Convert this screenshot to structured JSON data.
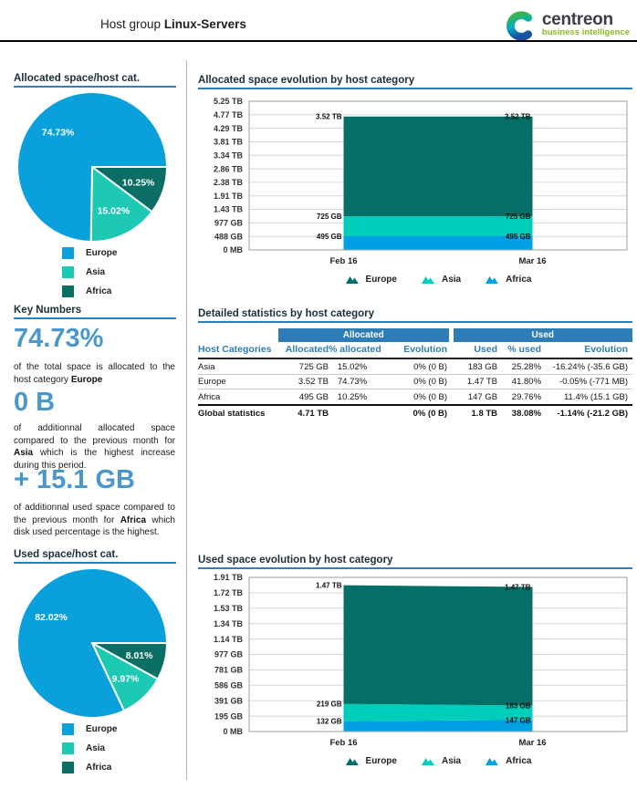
{
  "header": {
    "title_prefix": "Host group",
    "title_bold": "Linux-Servers",
    "logo": {
      "name": "centreon",
      "tagline": "business intelligence"
    }
  },
  "colors": {
    "accent_blue": "#2f80b9",
    "key_number_blue": "#4b96cb",
    "table_band_blue": "#2f7db6",
    "pie": {
      "Europe": "#0aa0dc",
      "Asia": "#1ec9b4",
      "Africa": "#0b6e64"
    },
    "area": {
      "Europe": "#046f67",
      "Asia": "#00cebb",
      "Africa": "#00a0e4"
    },
    "logo_green": "#8bb929"
  },
  "key_numbers": {
    "title": "Key Numbers",
    "items": [
      {
        "value": "74.73%",
        "segments": [
          {
            "t": "of the total space is allocated to the host category "
          },
          {
            "t": "Europe",
            "bold": true
          }
        ]
      },
      {
        "value": "0 B",
        "segments": [
          {
            "t": "of additionnal allocated space compared to the previous month for "
          },
          {
            "t": "Asia",
            "bold": true
          },
          {
            "t": " which is the highest increase during this period."
          }
        ]
      },
      {
        "value": "+ 15.1 GB",
        "segments": [
          {
            "t": "of additionnal used space compared to the previous month for "
          },
          {
            "t": "Africa",
            "bold": true
          },
          {
            "t": " which disk used percentage is the highest."
          }
        ]
      }
    ]
  },
  "chart_data": [
    {
      "id": "pie_allocated",
      "type": "pie",
      "title": "Allocated space/host cat.",
      "labels": [
        "Europe",
        "Asia",
        "Africa"
      ],
      "values": [
        74.73,
        15.02,
        10.25
      ],
      "value_labels": [
        "74.73%",
        "15.02%",
        "10.25%"
      ],
      "unit": "%",
      "draw_order": [
        "Africa",
        "Asia",
        "Europe"
      ],
      "colors": {
        "Europe": "#0aa0dc",
        "Asia": "#1ec9b4",
        "Africa": "#0b6e64"
      },
      "legend": [
        {
          "label": "Europe",
          "color": "#0aa0dc"
        },
        {
          "label": "Asia",
          "color": "#1ec9b4"
        },
        {
          "label": "Africa",
          "color": "#0b6e64"
        }
      ]
    },
    {
      "id": "area_allocated",
      "type": "area",
      "title": "Allocated space evolution by host category",
      "x": [
        "Feb 16",
        "Mar 16"
      ],
      "stacked": true,
      "y_ticks": [
        "5.25 TB",
        "4.77 TB",
        "4.29 TB",
        "3.81 TB",
        "3.34 TB",
        "2.86 TB",
        "2.38 TB",
        "1.91 TB",
        "1.43 TB",
        "977 GB",
        "488 GB",
        "0 MB"
      ],
      "y_max_gb": 5376,
      "series": [
        {
          "name": "Africa",
          "color": "#00a0e4",
          "values_gb": [
            495,
            495
          ],
          "labels": [
            "495 GB",
            "495 GB"
          ]
        },
        {
          "name": "Asia",
          "color": "#00cebb",
          "values_gb": [
            725,
            725
          ],
          "labels": [
            "725 GB",
            "725 GB"
          ]
        },
        {
          "name": "Europe",
          "color": "#046f67",
          "values_gb": [
            3604,
            3604
          ],
          "labels": [
            "3.52 TB",
            "3.52 TB"
          ]
        }
      ],
      "legend": [
        {
          "label": "Europe",
          "color": "#046f67"
        },
        {
          "label": "Asia",
          "color": "#00cebb"
        },
        {
          "label": "Africa",
          "color": "#00a0e4"
        }
      ]
    },
    {
      "id": "detailed_statistics",
      "type": "table",
      "title": "Detailed statistics by host category",
      "groups": [
        {
          "label": "Allocated"
        },
        {
          "label": "Used"
        }
      ],
      "columns": [
        "Host Categories",
        "Allocated",
        "% allocated",
        "Evolution",
        "Used",
        "% used",
        "Evolution"
      ],
      "rows": [
        [
          "Asia",
          "725 GB",
          "15.02%",
          "0% (0 B)",
          "183 GB",
          "25.28%",
          "-16.24% (-35.6 GB)"
        ],
        [
          "Europe",
          "3.52 TB",
          "74.73%",
          "0% (0 B)",
          "1.47 TB",
          "41.80%",
          "-0.05% (-771 MB)"
        ],
        [
          "Africa",
          "495 GB",
          "10.25%",
          "0% (0 B)",
          "147 GB",
          "29.76%",
          "11.4% (15.1 GB)"
        ]
      ],
      "total": [
        "Global statistics",
        "4.71 TB",
        "",
        "0% (0 B)",
        "1.8 TB",
        "38.08%",
        "-1.14% (-21.2 GB)"
      ]
    },
    {
      "id": "pie_used",
      "type": "pie",
      "title": "Used space/host cat.",
      "labels": [
        "Europe",
        "Asia",
        "Africa"
      ],
      "values": [
        82.02,
        9.97,
        8.01
      ],
      "value_labels": [
        "82.02%",
        "9.97%",
        "8.01%"
      ],
      "unit": "%",
      "draw_order": [
        "Africa",
        "Asia",
        "Europe"
      ],
      "colors": {
        "Europe": "#0aa0dc",
        "Asia": "#1ec9b4",
        "Africa": "#0b6e64"
      },
      "legend": [
        {
          "label": "Europe",
          "color": "#0aa0dc"
        },
        {
          "label": "Asia",
          "color": "#1ec9b4"
        },
        {
          "label": "Africa",
          "color": "#0b6e64"
        }
      ]
    },
    {
      "id": "area_used",
      "type": "area",
      "title": "Used space evolution by host category",
      "x": [
        "Feb 16",
        "Mar 16"
      ],
      "stacked": true,
      "y_ticks": [
        "1.91 TB",
        "1.72 TB",
        "1.53 TB",
        "1.34 TB",
        "1.14 TB",
        "977 GB",
        "781 GB",
        "586 GB",
        "391 GB",
        "195 GB",
        "0 MB"
      ],
      "y_max_gb": 1956,
      "series": [
        {
          "name": "Africa",
          "color": "#00a0e4",
          "values_gb": [
            132,
            147
          ],
          "labels": [
            "132 GB",
            "147 GB"
          ]
        },
        {
          "name": "Asia",
          "color": "#00cebb",
          "values_gb": [
            219,
            183
          ],
          "labels": [
            "219 GB",
            "183 GB"
          ]
        },
        {
          "name": "Europe",
          "color": "#046f67",
          "values_gb": [
            1505,
            1505
          ],
          "labels": [
            "1.47 TB",
            "1.47 TB"
          ]
        }
      ],
      "legend": [
        {
          "label": "Europe",
          "color": "#046f67"
        },
        {
          "label": "Asia",
          "color": "#00cebb"
        },
        {
          "label": "Africa",
          "color": "#00a0e4"
        }
      ]
    }
  ]
}
